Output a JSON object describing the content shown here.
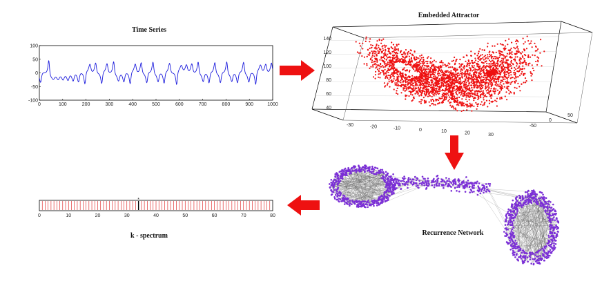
{
  "colors": {
    "series": "#1a1adc",
    "attractor": "#ee1111",
    "arrow": "#ee1111",
    "node": "#7b2fd6",
    "edge": "#555555",
    "spectrum": "#d11",
    "spectrum_peak": "#000000"
  },
  "panels": {
    "time_series": {
      "title": "Time Series",
      "chart_data": {
        "type": "line",
        "xlim": [
          0,
          1000
        ],
        "ylim": [
          -100,
          100
        ],
        "xticks": [
          0,
          100,
          200,
          300,
          400,
          500,
          600,
          700,
          800,
          900,
          1000
        ],
        "yticks": [
          100,
          50,
          0,
          -50,
          -100
        ]
      }
    },
    "attractor": {
      "title": "Embedded Attractor",
      "chart_data": {
        "type": "scatter",
        "zticks": [
          140,
          120,
          100,
          80,
          60,
          40
        ],
        "xticks": [
          -30,
          -20,
          -10,
          0,
          10,
          20,
          30
        ],
        "yticks": [
          -50,
          0,
          50
        ]
      }
    },
    "network": {
      "title": "Recurrence Network"
    },
    "spectrum": {
      "title": "k - spectrum",
      "chart_data": {
        "type": "bar",
        "xlim": [
          0,
          80
        ],
        "xticks": [
          0,
          10,
          20,
          30,
          40,
          50,
          60,
          70,
          80
        ],
        "bar_count": 79,
        "highlight_k": 34,
        "highlight_marker": "*"
      }
    }
  }
}
